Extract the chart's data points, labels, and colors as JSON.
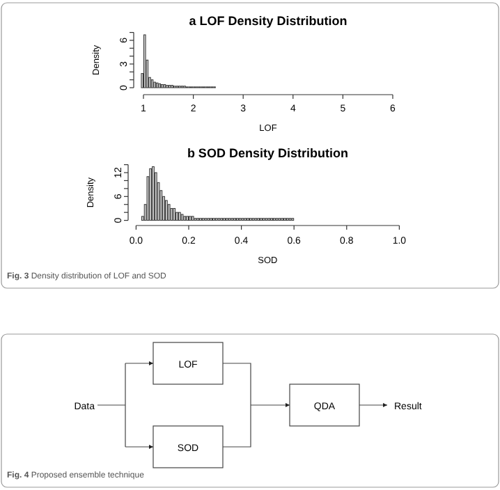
{
  "chart_data": [
    {
      "type": "histogram",
      "title": "a LOF Density Distribution",
      "xlabel": "LOF",
      "ylabel": "Density",
      "color": "#d3d3d3",
      "bins": [
        0.95,
        1.0,
        1.05,
        1.1,
        1.15,
        1.2,
        1.25,
        1.3,
        1.35,
        1.4,
        1.45,
        1.5,
        1.55,
        1.6,
        1.65,
        1.7,
        1.75,
        1.8,
        1.85,
        1.9,
        1.95,
        2.0,
        2.05,
        2.1,
        2.15,
        2.2,
        2.25,
        2.3,
        2.35,
        2.4,
        2.45
      ],
      "values": [
        1.8,
        6.7,
        3.5,
        1.3,
        1.0,
        0.7,
        0.6,
        0.5,
        0.4,
        0.4,
        0.3,
        0.3,
        0.3,
        0.2,
        0.2,
        0.2,
        0.2,
        0.2,
        0.1,
        0.1,
        0.1,
        0.1,
        0.1,
        0.1,
        0.1,
        0.1,
        0.1,
        0.1,
        0.1,
        0.1
      ],
      "xlim": [
        1,
        6
      ],
      "xticks": [
        1,
        2,
        3,
        4,
        5,
        6
      ],
      "ylim": [
        0,
        7
      ],
      "yticks": [
        0,
        {
          "value": 1,
          "label": null
        },
        {
          "value": 2,
          "label": null
        },
        3,
        {
          "value": 4,
          "label": null
        },
        {
          "value": 5,
          "label": null
        },
        6,
        {
          "value": 7,
          "label": null
        }
      ]
    },
    {
      "type": "histogram",
      "title": "b SOD Density Distribution",
      "xlabel": "SOD",
      "ylabel": "Density",
      "color": "#d3d3d3",
      "bins": [
        0.02,
        0.03,
        0.04,
        0.05,
        0.06,
        0.07,
        0.08,
        0.09,
        0.1,
        0.11,
        0.12,
        0.13,
        0.14,
        0.15,
        0.16,
        0.17,
        0.18,
        0.19,
        0.2,
        0.21,
        0.22,
        0.23,
        0.24,
        0.25,
        0.26,
        0.27,
        0.28,
        0.29,
        0.3,
        0.31,
        0.32,
        0.33,
        0.34,
        0.35,
        0.36,
        0.37,
        0.38,
        0.39,
        0.4,
        0.41,
        0.42,
        0.43,
        0.44,
        0.45,
        0.46,
        0.47,
        0.48,
        0.49,
        0.5,
        0.51,
        0.52,
        0.53,
        0.54,
        0.55,
        0.56,
        0.57,
        0.58,
        0.59,
        0.6
      ],
      "values": [
        1,
        4,
        11,
        13,
        13.5,
        12,
        9.5,
        7.5,
        6,
        5,
        4,
        3,
        3,
        2,
        2,
        1.5,
        1,
        1,
        1,
        1,
        0.5,
        0.5,
        0.5,
        0.5,
        0.5,
        0.5,
        0.5,
        0.5,
        0.5,
        0.5,
        0.5,
        0.5,
        0.5,
        0.5,
        0.5,
        0.5,
        0.5,
        0.5,
        0.5,
        0.5,
        0.5,
        0.5,
        0.5,
        0.5,
        0.5,
        0.5,
        0.5,
        0.5,
        0.5,
        0.5,
        0.5,
        0.5,
        0.5,
        0.5,
        0.5,
        0.5,
        0.5,
        0.5
      ],
      "xlim": [
        0,
        1
      ],
      "xticks": [
        {
          "value": 0,
          "label": "0.0"
        },
        0.2,
        0.4,
        0.6,
        0.8,
        {
          "value": 1,
          "label": "1.0"
        }
      ],
      "ylim": [
        0,
        14
      ],
      "yticks": [
        0,
        {
          "value": 2,
          "label": null
        },
        {
          "value": 4,
          "label": null
        },
        6,
        {
          "value": 8,
          "label": null
        },
        {
          "value": 10,
          "label": null
        },
        12,
        {
          "value": 14,
          "label": null
        }
      ],
      "annotations": [
        "Fig. 3 Density distribution of LOF and SOD"
      ]
    },
    {
      "type": "other",
      "categories": [
        "Data",
        "LOF",
        "SOD",
        "QDA",
        "Result"
      ],
      "annotations": [
        "Fig. 4 Proposed ensemble technique"
      ]
    }
  ]
}
